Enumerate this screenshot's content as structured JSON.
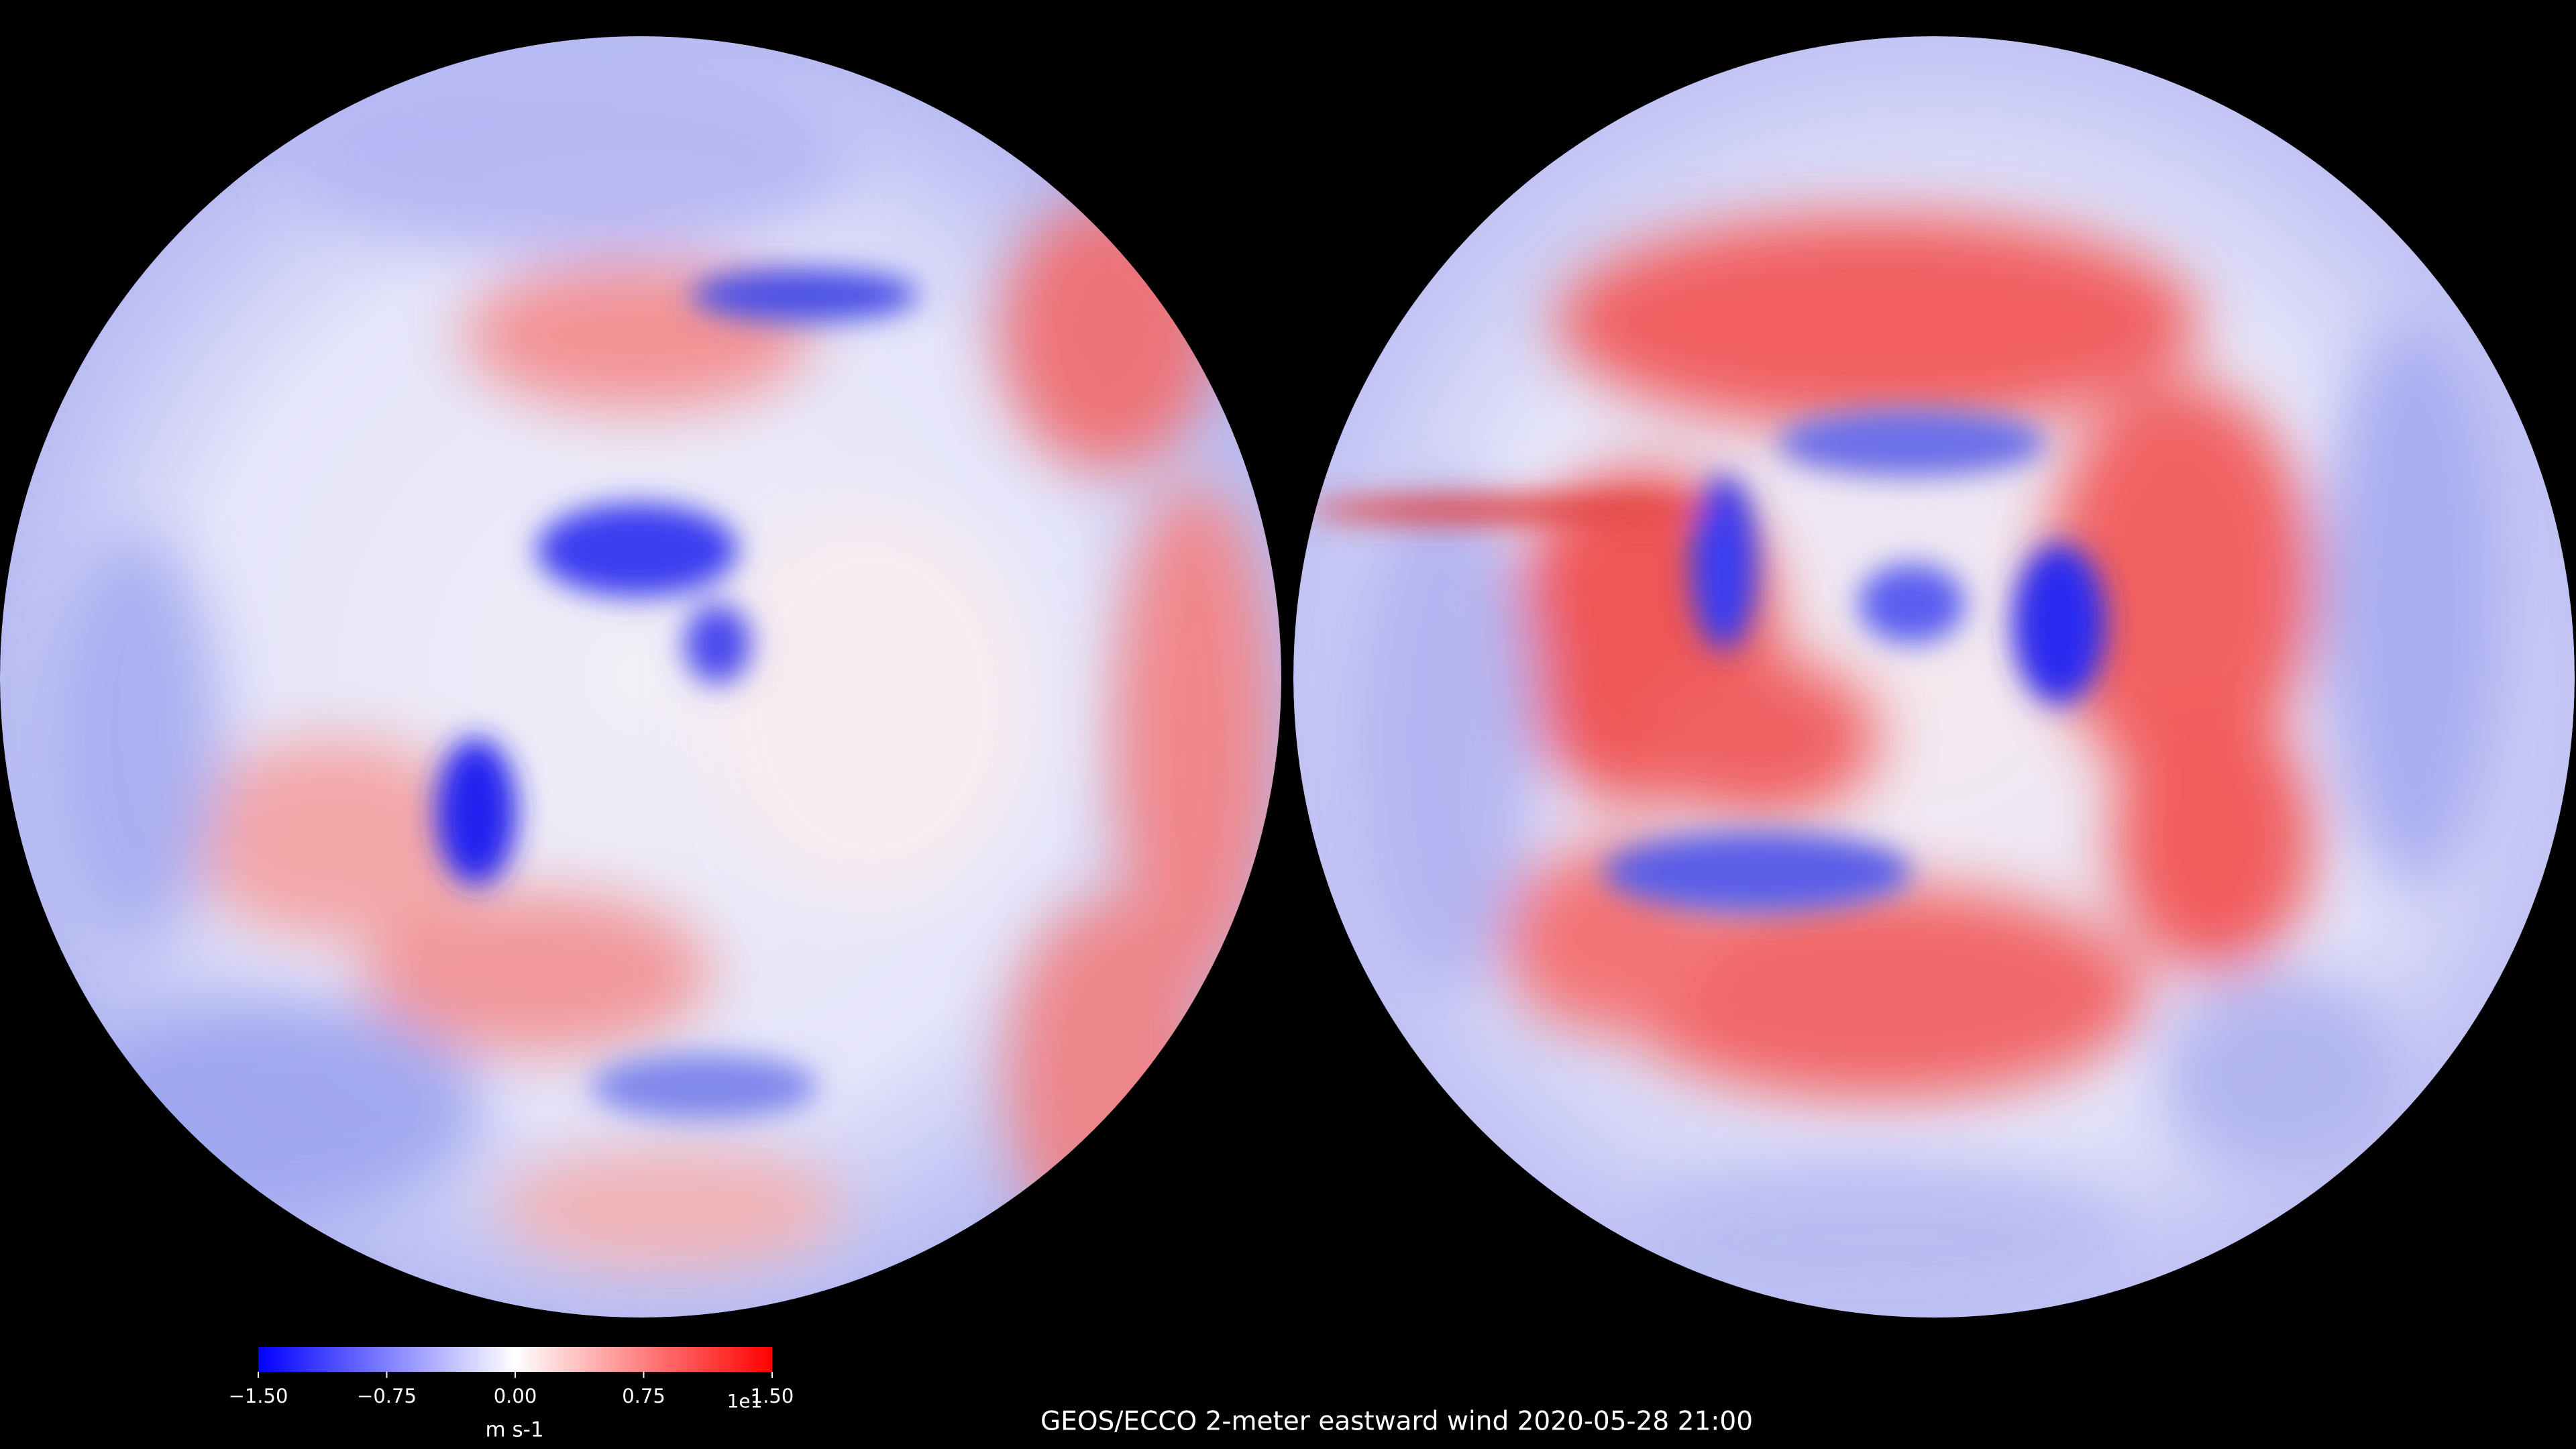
{
  "chart_data": {
    "type": "map",
    "title": "GEOS/ECCO 2-meter eastward wind   2020-05-28 21:00",
    "colorbar": {
      "label": "m s-1",
      "offset_label": "1e1",
      "lim": [
        -1.5,
        1.5
      ],
      "ticks": [
        {
          "value": -1.5,
          "label": "−1.50"
        },
        {
          "value": -0.75,
          "label": "−0.75"
        },
        {
          "value": 0,
          "label": "0.00"
        },
        {
          "value": 0.75,
          "label": "0.75"
        },
        {
          "value": 1.5,
          "label": "1.50"
        }
      ],
      "colors": [
        "#0000ff",
        "#ffffff",
        "#ff0000"
      ]
    }
  }
}
